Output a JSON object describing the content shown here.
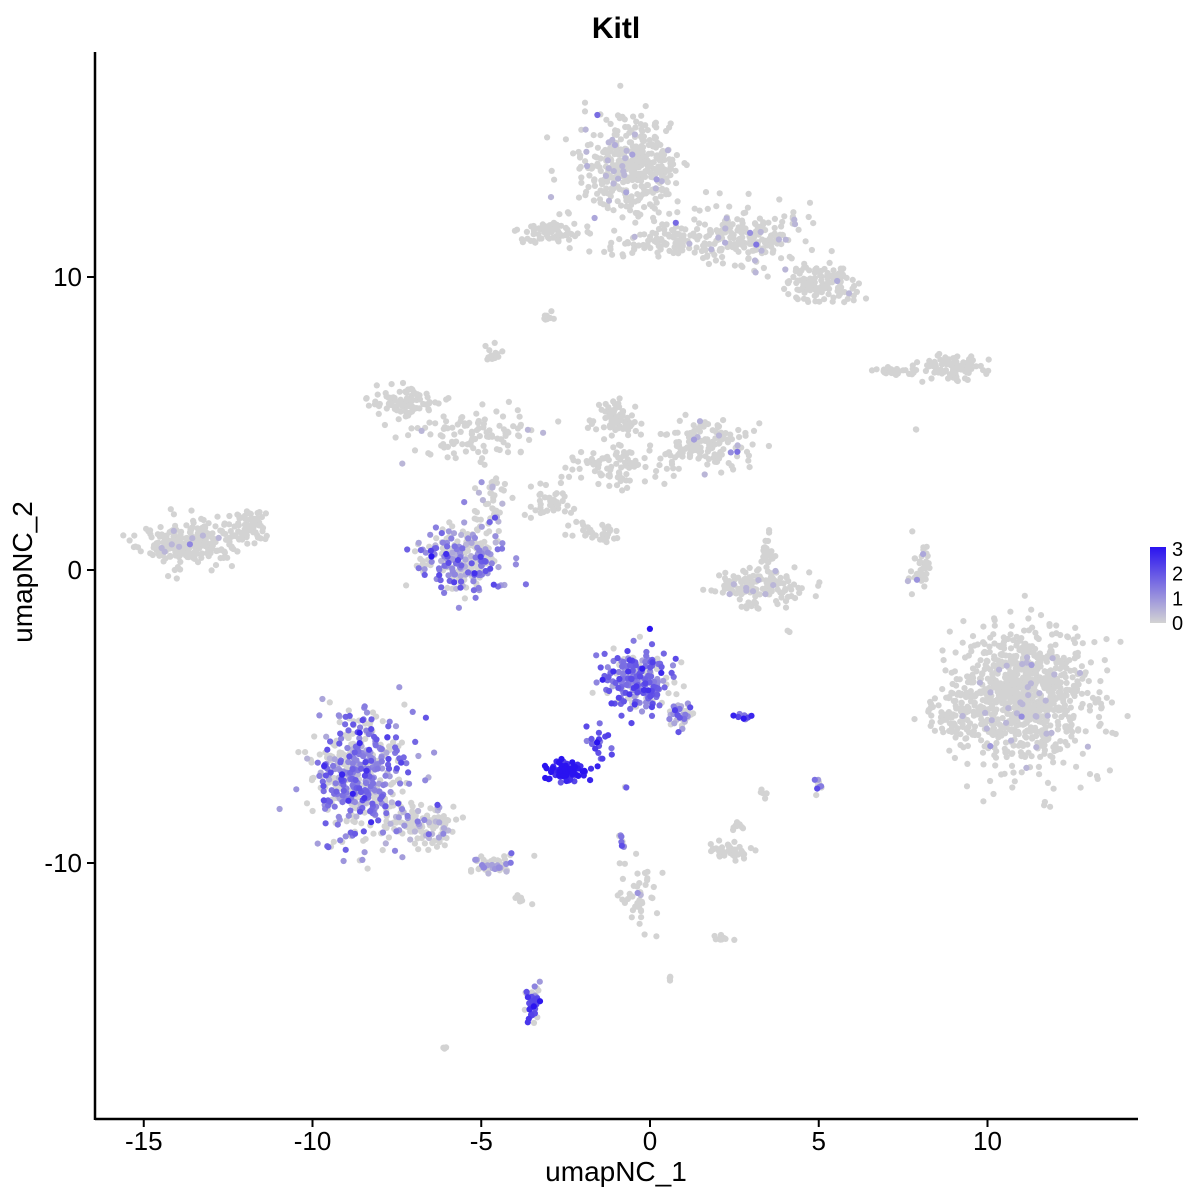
{
  "chart_data": {
    "type": "scatter",
    "title": "Kitl",
    "xlabel": "umapNC_1",
    "ylabel": "umapNC_2",
    "xlim": [
      -16.5,
      14.5
    ],
    "ylim": [
      -18.3,
      17.6
    ],
    "xticks": [
      -15,
      -10,
      -5,
      0,
      5,
      10
    ],
    "xtick_labels": [
      "-15",
      "-10",
      "-5",
      "0",
      "5",
      "10"
    ],
    "yticks": [
      -10,
      0,
      10
    ],
    "ytick_labels": [
      "-10",
      "0",
      "10"
    ],
    "grid": false,
    "legend": {
      "position": "right",
      "type": "colorbar",
      "ticks": [
        0,
        1,
        2,
        3
      ],
      "tick_labels": [
        "0",
        "1",
        "2",
        "3"
      ],
      "low_color": "#d3d3d3",
      "high_color": "#2a13f0"
    },
    "clusters": [
      {
        "cx": -0.6,
        "cy": 13.8,
        "rx": 1.4,
        "ry": 1.5,
        "n": 420,
        "expr": 0.03
      },
      {
        "cx": 2.8,
        "cy": 11.3,
        "rx": 1.6,
        "ry": 0.9,
        "n": 180,
        "expr": 0.04
      },
      {
        "cx": 5.2,
        "cy": 9.8,
        "rx": 0.9,
        "ry": 0.6,
        "n": 130,
        "expr": 0.02
      },
      {
        "cx": -2.8,
        "cy": 11.5,
        "rx": 0.9,
        "ry": 0.4,
        "n": 70,
        "expr": 0.0
      },
      {
        "cx": 0.8,
        "cy": 11.2,
        "rx": 1.8,
        "ry": 0.5,
        "n": 110,
        "expr": 0.0
      },
      {
        "cx": -3.0,
        "cy": 8.6,
        "rx": 0.25,
        "ry": 0.15,
        "n": 10,
        "expr": 0.0
      },
      {
        "cx": -4.7,
        "cy": 7.3,
        "rx": 0.25,
        "ry": 0.3,
        "n": 12,
        "expr": 0.0
      },
      {
        "cx": 9.0,
        "cy": 6.9,
        "rx": 0.9,
        "ry": 0.35,
        "n": 90,
        "expr": 0.0
      },
      {
        "cx": 7.3,
        "cy": 6.8,
        "rx": 0.7,
        "ry": 0.15,
        "n": 30,
        "expr": 0.0
      },
      {
        "cx": -7.3,
        "cy": 5.7,
        "rx": 0.9,
        "ry": 0.5,
        "n": 90,
        "expr": 0.0
      },
      {
        "cx": -5.2,
        "cy": 4.6,
        "rx": 1.6,
        "ry": 0.8,
        "n": 110,
        "expr": 0.02
      },
      {
        "cx": -1.0,
        "cy": 5.2,
        "rx": 0.6,
        "ry": 0.6,
        "n": 70,
        "expr": 0.0
      },
      {
        "cx": 1.6,
        "cy": 4.3,
        "rx": 1.2,
        "ry": 0.7,
        "n": 150,
        "expr": 0.04
      },
      {
        "cx": -0.8,
        "cy": 3.6,
        "rx": 1.6,
        "ry": 0.6,
        "n": 90,
        "expr": 0.0
      },
      {
        "cx": -4.7,
        "cy": 2.2,
        "rx": 0.4,
        "ry": 1.0,
        "n": 40,
        "expr": 0.1
      },
      {
        "cx": -3.0,
        "cy": 2.3,
        "rx": 0.8,
        "ry": 0.6,
        "n": 40,
        "expr": 0.0
      },
      {
        "cx": -1.6,
        "cy": 1.2,
        "rx": 0.8,
        "ry": 0.4,
        "n": 30,
        "expr": 0.0
      },
      {
        "cx": -13.6,
        "cy": 0.9,
        "rx": 1.2,
        "ry": 0.7,
        "n": 260,
        "expr": 0.01
      },
      {
        "cx": -11.9,
        "cy": 1.5,
        "rx": 0.6,
        "ry": 0.6,
        "n": 70,
        "expr": 0.0
      },
      {
        "cx": -5.6,
        "cy": 0.4,
        "rx": 1.1,
        "ry": 1.0,
        "n": 280,
        "expr": 0.4
      },
      {
        "cx": 3.3,
        "cy": -0.6,
        "rx": 1.1,
        "ry": 0.6,
        "n": 140,
        "expr": 0.03
      },
      {
        "cx": 3.5,
        "cy": 0.5,
        "rx": 0.2,
        "ry": 0.6,
        "n": 25,
        "expr": 0.0
      },
      {
        "cx": 8.0,
        "cy": 0.0,
        "rx": 0.3,
        "ry": 0.9,
        "n": 40,
        "expr": 0.05
      },
      {
        "cx": 11.1,
        "cy": -4.3,
        "rx": 1.9,
        "ry": 2.2,
        "n": 900,
        "expr": 0.02
      },
      {
        "cx": 8.9,
        "cy": -4.9,
        "rx": 0.7,
        "ry": 0.6,
        "n": 60,
        "expr": 0.0
      },
      {
        "cx": -0.4,
        "cy": -3.8,
        "rx": 0.9,
        "ry": 0.9,
        "n": 240,
        "expr": 0.55
      },
      {
        "cx": 0.9,
        "cy": -4.9,
        "rx": 0.35,
        "ry": 0.5,
        "n": 40,
        "expr": 0.4
      },
      {
        "cx": -2.4,
        "cy": -6.9,
        "rx": 0.6,
        "ry": 0.3,
        "n": 90,
        "expr": 0.92
      },
      {
        "cx": -1.5,
        "cy": -6.0,
        "rx": 0.4,
        "ry": 0.5,
        "n": 20,
        "expr": 0.7
      },
      {
        "cx": 2.8,
        "cy": -5.0,
        "rx": 0.3,
        "ry": 0.12,
        "n": 10,
        "expr": 0.7
      },
      {
        "cx": -8.6,
        "cy": -7.1,
        "rx": 1.3,
        "ry": 2.0,
        "n": 520,
        "expr": 0.45
      },
      {
        "cx": -6.6,
        "cy": -8.7,
        "rx": 0.9,
        "ry": 0.6,
        "n": 120,
        "expr": 0.15
      },
      {
        "cx": -4.7,
        "cy": -10.1,
        "rx": 0.6,
        "ry": 0.3,
        "n": 50,
        "expr": 0.3
      },
      {
        "cx": 2.4,
        "cy": -9.6,
        "rx": 0.6,
        "ry": 0.25,
        "n": 40,
        "expr": 0.0
      },
      {
        "cx": 2.6,
        "cy": -8.8,
        "rx": 0.2,
        "ry": 0.2,
        "n": 10,
        "expr": 0.0
      },
      {
        "cx": 5.0,
        "cy": -7.4,
        "rx": 0.1,
        "ry": 0.25,
        "n": 10,
        "expr": 0.4
      },
      {
        "cx": 3.4,
        "cy": -7.6,
        "rx": 0.1,
        "ry": 0.15,
        "n": 5,
        "expr": 0.0
      },
      {
        "cx": -0.3,
        "cy": -11.1,
        "rx": 0.6,
        "ry": 1.1,
        "n": 45,
        "expr": 0.05
      },
      {
        "cx": -0.8,
        "cy": -9.3,
        "rx": 0.1,
        "ry": 0.3,
        "n": 8,
        "expr": 0.5
      },
      {
        "cx": 2.0,
        "cy": -12.6,
        "rx": 0.4,
        "ry": 0.15,
        "n": 12,
        "expr": 0.0
      },
      {
        "cx": -3.5,
        "cy": -14.8,
        "rx": 0.2,
        "ry": 0.6,
        "n": 45,
        "expr": 0.6
      },
      {
        "cx": 0.6,
        "cy": -13.9,
        "rx": 0.08,
        "ry": 0.1,
        "n": 4,
        "expr": 0.0
      },
      {
        "cx": -6.1,
        "cy": -16.3,
        "rx": 0.1,
        "ry": 0.06,
        "n": 4,
        "expr": 0.0
      },
      {
        "cx": -3.9,
        "cy": -11.2,
        "rx": 0.3,
        "ry": 0.3,
        "n": 6,
        "expr": 0.1
      },
      {
        "cx": -0.7,
        "cy": -7.4,
        "rx": 0.05,
        "ry": 0.05,
        "n": 2,
        "expr": 0.6
      },
      {
        "cx": 4.1,
        "cy": -2.1,
        "rx": 0.05,
        "ry": 0.05,
        "n": 2,
        "expr": 0.0
      },
      {
        "cx": 7.9,
        "cy": 4.8,
        "rx": 0.05,
        "ry": 0.05,
        "n": 2,
        "expr": 0.0
      }
    ]
  }
}
